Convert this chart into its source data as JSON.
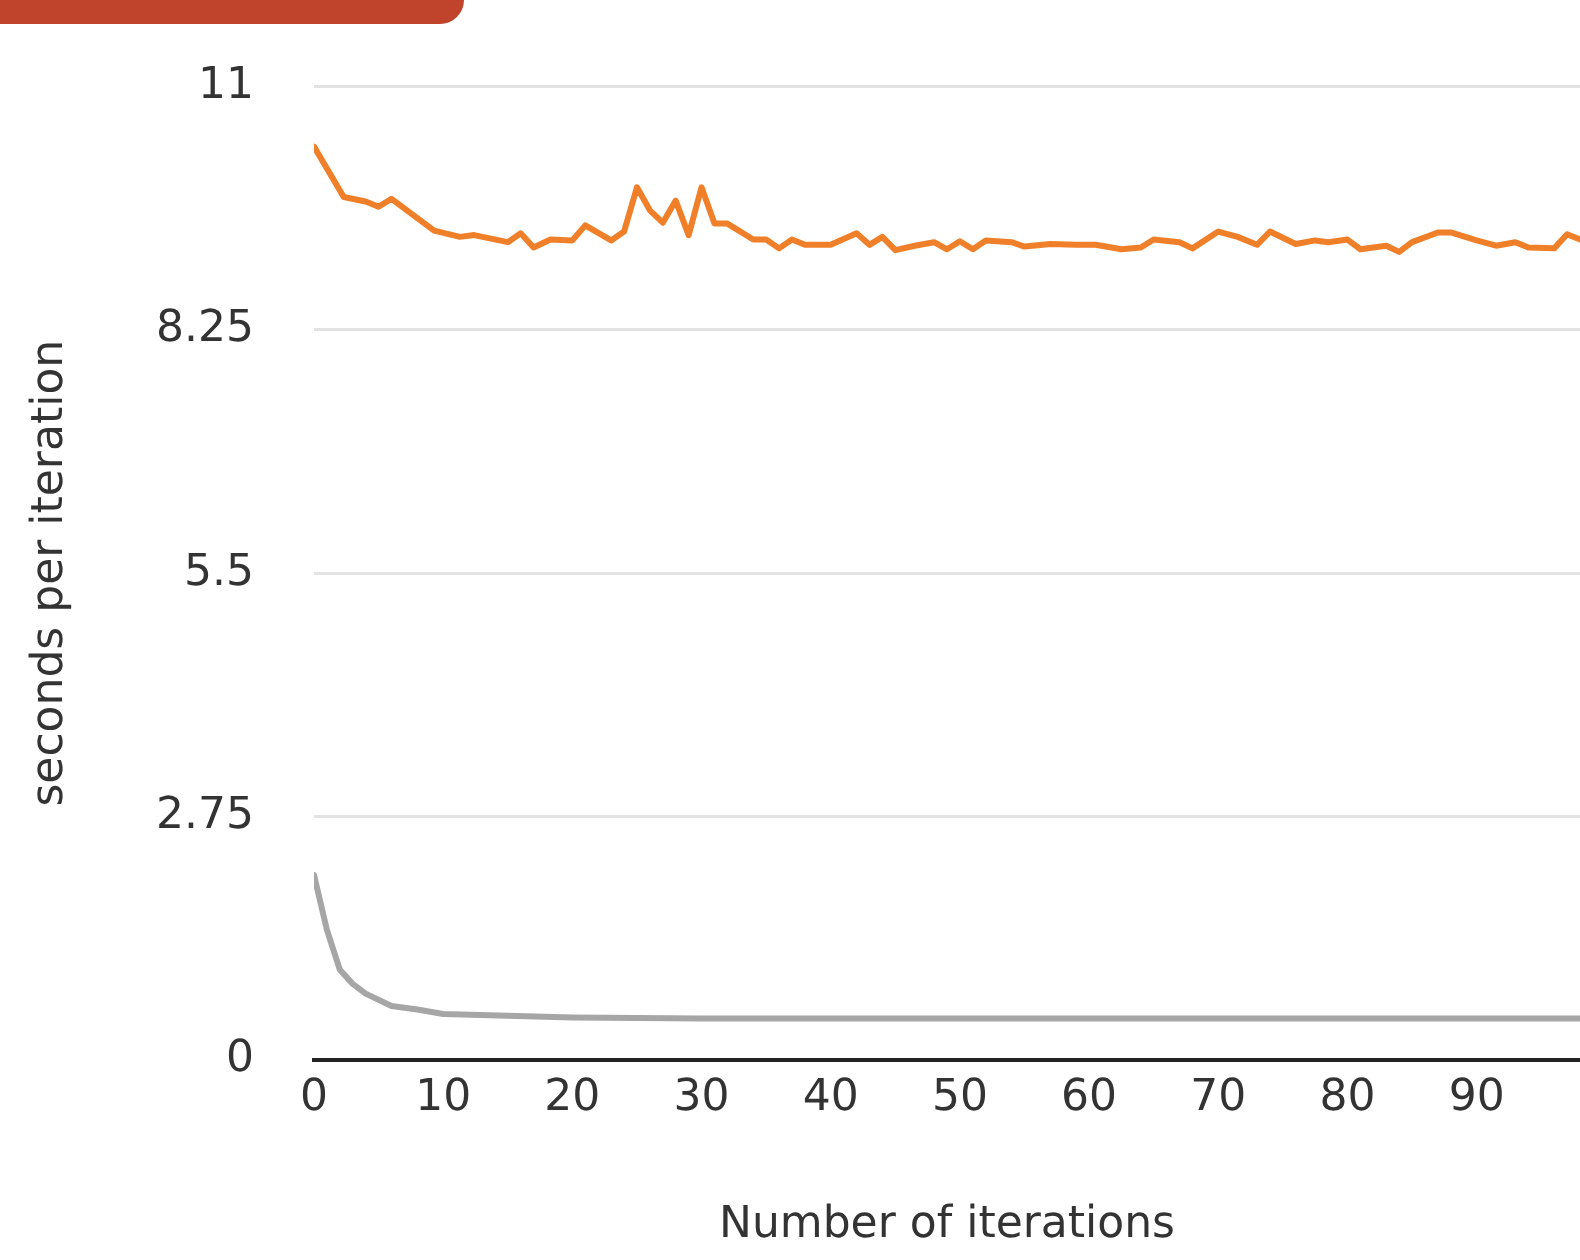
{
  "chart_data": {
    "type": "line",
    "xlabel": "Number of iterations",
    "ylabel": "seconds per iteration",
    "xlim": [
      0,
      98
    ],
    "xticks": [
      0,
      10,
      20,
      30,
      40,
      50,
      60,
      70,
      80,
      90
    ],
    "ylim": [
      0,
      11
    ],
    "yticks": [
      0,
      2.75,
      5.5,
      8.25,
      11
    ],
    "grid": "y",
    "legend": false,
    "marker": "none",
    "line_style": "solid",
    "series": [
      {
        "color": "#f07f2a",
        "x": [
          0,
          2.3,
          4,
          5,
          6,
          9.3,
          11.3,
          12.4,
          15,
          16,
          17,
          18.3,
          20,
          21,
          23,
          24,
          25,
          26,
          27,
          28,
          29,
          30,
          31,
          32,
          34,
          35,
          36,
          37,
          38,
          40,
          42,
          43,
          44,
          45,
          46.5,
          48,
          49,
          50,
          51,
          52,
          54,
          55,
          57,
          59,
          60.5,
          62.5,
          64,
          65,
          67,
          68,
          70,
          71.5,
          73,
          74,
          76,
          77.5,
          78.5,
          80,
          81,
          83,
          84,
          85,
          87,
          88,
          90,
          91.5,
          93,
          94,
          96,
          97,
          98
        ],
        "values": [
          10.32,
          9.75,
          9.7,
          9.64,
          9.73,
          9.37,
          9.3,
          9.32,
          9.24,
          9.34,
          9.18,
          9.27,
          9.26,
          9.43,
          9.26,
          9.36,
          9.86,
          9.6,
          9.46,
          9.71,
          9.32,
          9.86,
          9.45,
          9.45,
          9.27,
          9.27,
          9.17,
          9.27,
          9.21,
          9.21,
          9.34,
          9.21,
          9.3,
          9.15,
          9.2,
          9.24,
          9.16,
          9.25,
          9.16,
          9.26,
          9.24,
          9.19,
          9.22,
          9.21,
          9.21,
          9.16,
          9.18,
          9.27,
          9.24,
          9.17,
          9.36,
          9.3,
          9.21,
          9.36,
          9.22,
          9.26,
          9.24,
          9.27,
          9.16,
          9.2,
          9.13,
          9.24,
          9.35,
          9.35,
          9.26,
          9.2,
          9.24,
          9.18,
          9.17,
          9.33,
          9.27
        ]
      },
      {
        "color": "#a6a6a6",
        "x": [
          0,
          1,
          2,
          3,
          4,
          6,
          8,
          10,
          15,
          20,
          30,
          40,
          50,
          60,
          70,
          80,
          90,
          98
        ],
        "values": [
          2.09,
          1.47,
          1.02,
          0.86,
          0.75,
          0.61,
          0.57,
          0.52,
          0.5,
          0.48,
          0.47,
          0.47,
          0.47,
          0.47,
          0.47,
          0.47,
          0.47,
          0.47
        ]
      }
    ]
  }
}
